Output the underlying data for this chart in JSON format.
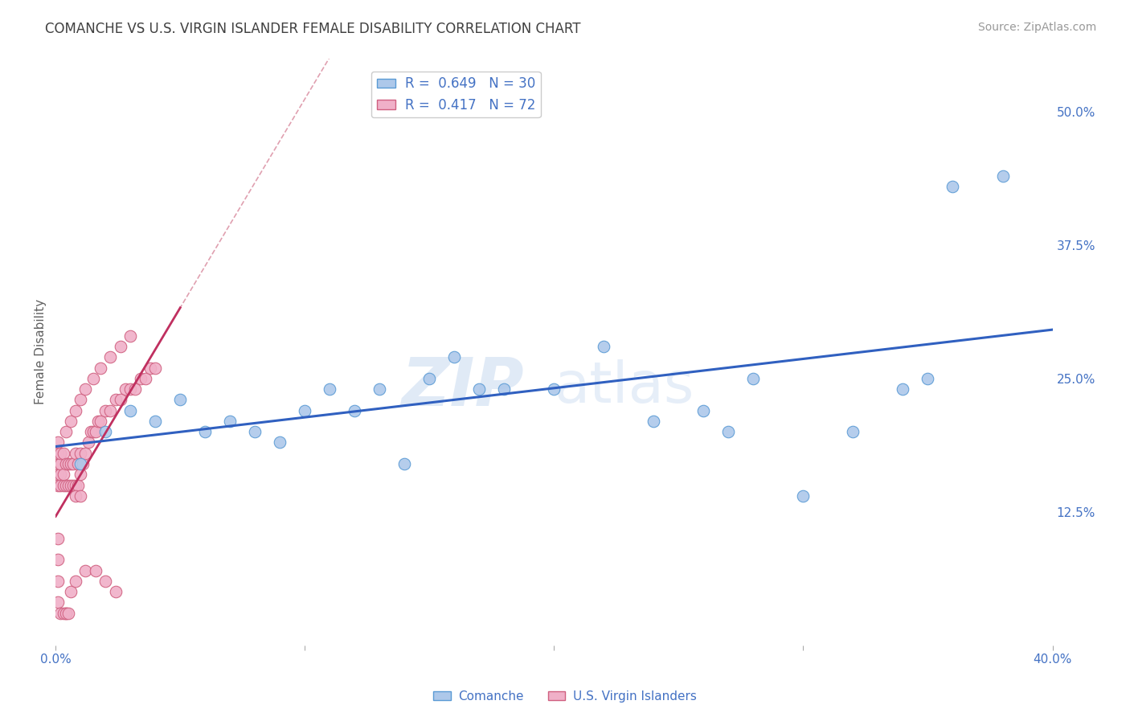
{
  "title": "COMANCHE VS U.S. VIRGIN ISLANDER FEMALE DISABILITY CORRELATION CHART",
  "source_text": "Source: ZipAtlas.com",
  "ylabel": "Female Disability",
  "xlim": [
    0.0,
    0.4
  ],
  "ylim": [
    0.0,
    0.55
  ],
  "xtick_labels": [
    "0.0%",
    "",
    "",
    "",
    "40.0%"
  ],
  "xtick_values": [
    0.0,
    0.1,
    0.2,
    0.3,
    0.4
  ],
  "ytick_labels": [
    "12.5%",
    "25.0%",
    "37.5%",
    "50.0%"
  ],
  "ytick_values": [
    0.125,
    0.25,
    0.375,
    0.5
  ],
  "comanche_color": "#adc8ea",
  "comanche_edge_color": "#5b9bd5",
  "virgin_color": "#f0b0c8",
  "virgin_edge_color": "#d06080",
  "regression_line_comanche_color": "#3060c0",
  "regression_line_virgin_color": "#c03060",
  "diagonal_color": "#e0a0b0",
  "R_comanche": 0.649,
  "N_comanche": 30,
  "R_virgin": 0.417,
  "N_virgin": 72,
  "legend_label_color": "#4472c4",
  "title_color": "#404040",
  "axis_label_color": "#606060",
  "tick_label_color": "#4472c4",
  "watermark_zip": "ZIP",
  "watermark_atlas": "atlas",
  "background_color": "#ffffff",
  "grid_color": "#c8d8e8",
  "comanche_x": [
    0.01,
    0.02,
    0.03,
    0.04,
    0.05,
    0.06,
    0.07,
    0.08,
    0.09,
    0.1,
    0.11,
    0.12,
    0.13,
    0.14,
    0.15,
    0.16,
    0.17,
    0.18,
    0.2,
    0.22,
    0.24,
    0.26,
    0.27,
    0.28,
    0.3,
    0.32,
    0.34,
    0.35,
    0.36,
    0.38
  ],
  "comanche_y": [
    0.17,
    0.2,
    0.22,
    0.21,
    0.23,
    0.2,
    0.21,
    0.2,
    0.19,
    0.22,
    0.24,
    0.22,
    0.24,
    0.17,
    0.25,
    0.27,
    0.24,
    0.24,
    0.24,
    0.28,
    0.21,
    0.22,
    0.2,
    0.25,
    0.14,
    0.2,
    0.24,
    0.25,
    0.43,
    0.44
  ],
  "virgin_x": [
    0.001,
    0.001,
    0.001,
    0.001,
    0.001,
    0.002,
    0.002,
    0.002,
    0.002,
    0.003,
    0.003,
    0.003,
    0.004,
    0.004,
    0.005,
    0.005,
    0.006,
    0.006,
    0.007,
    0.007,
    0.008,
    0.008,
    0.009,
    0.009,
    0.01,
    0.01,
    0.011,
    0.012,
    0.013,
    0.014,
    0.015,
    0.016,
    0.017,
    0.018,
    0.02,
    0.022,
    0.024,
    0.026,
    0.028,
    0.03,
    0.032,
    0.034,
    0.036,
    0.038,
    0.04,
    0.004,
    0.006,
    0.008,
    0.01,
    0.012,
    0.015,
    0.018,
    0.022,
    0.026,
    0.03,
    0.004,
    0.006,
    0.008,
    0.012,
    0.016,
    0.02,
    0.024,
    0.001,
    0.001,
    0.001,
    0.001,
    0.002,
    0.003,
    0.004,
    0.005,
    0.008,
    0.01
  ],
  "virgin_y": [
    0.15,
    0.16,
    0.17,
    0.18,
    0.19,
    0.15,
    0.16,
    0.17,
    0.18,
    0.15,
    0.16,
    0.18,
    0.15,
    0.17,
    0.15,
    0.17,
    0.15,
    0.17,
    0.15,
    0.17,
    0.15,
    0.18,
    0.15,
    0.17,
    0.16,
    0.18,
    0.17,
    0.18,
    0.19,
    0.2,
    0.2,
    0.2,
    0.21,
    0.21,
    0.22,
    0.22,
    0.23,
    0.23,
    0.24,
    0.24,
    0.24,
    0.25,
    0.25,
    0.26,
    0.26,
    0.2,
    0.21,
    0.22,
    0.23,
    0.24,
    0.25,
    0.26,
    0.27,
    0.28,
    0.29,
    0.03,
    0.05,
    0.06,
    0.07,
    0.07,
    0.06,
    0.05,
    0.1,
    0.08,
    0.06,
    0.04,
    0.03,
    0.03,
    0.03,
    0.03,
    0.14,
    0.14
  ]
}
